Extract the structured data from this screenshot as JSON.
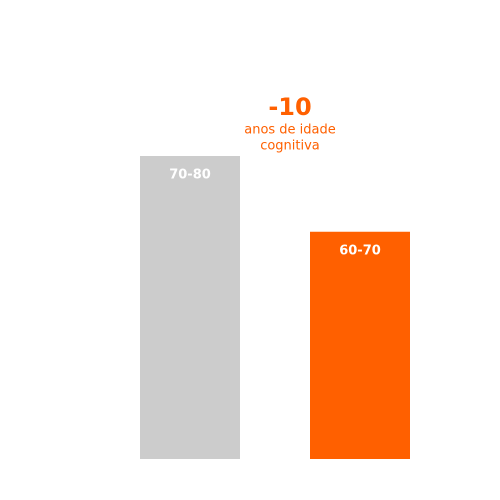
{
  "chart_data": {
    "type": "bar",
    "categories": [
      "70-80",
      "60-70"
    ],
    "values": [
      80,
      60
    ],
    "colors": [
      "#cccccc",
      "#ff6000"
    ],
    "ylim": [
      0,
      80
    ],
    "annotations": [
      "-10",
      "anos de idade",
      "cognitiva"
    ],
    "annotation_color": "#ff6000"
  }
}
